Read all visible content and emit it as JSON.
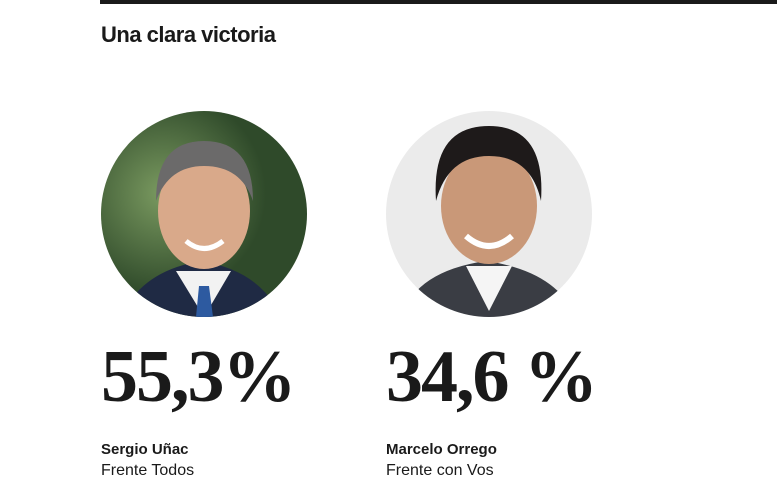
{
  "header": {
    "title": "Una clara victoria"
  },
  "candidates": [
    {
      "percentage": "55,3%",
      "name": "Sergio Uñac",
      "party": "Frente Todos"
    },
    {
      "percentage": "34,6 %",
      "name": "Marcelo Orrego",
      "party": "Frente con Vos"
    }
  ]
}
